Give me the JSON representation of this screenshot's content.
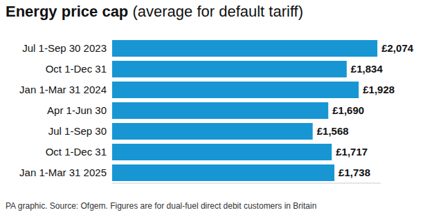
{
  "chart_data": {
    "type": "bar",
    "title": "Energy price cap",
    "subtitle": "(average for default tariff)",
    "orientation": "horizontal",
    "categories": [
      "Jul 1-Sep 30 2023",
      "Oct 1-Dec 31",
      "Jan 1-Mar 31 2024",
      "Apr 1-Jun 30",
      "Jul 1-Sep 30",
      "Oct 1-Dec 31",
      "Jan 1-Mar 31 2025"
    ],
    "values": [
      2074,
      1834,
      1928,
      1690,
      1568,
      1717,
      1738
    ],
    "value_labels": [
      "£2,074",
      "£1,834",
      "£1,928",
      "£1,690",
      "£1,568",
      "£1,717",
      "£1,738"
    ],
    "data_labels": true,
    "color": "#1796d3",
    "xlim": [
      0,
      2100
    ],
    "tick_labels": "y",
    "grid": false,
    "note": "PA graphic. Source: Ofgem. Figures are for dual-fuel direct debit customers in Britain"
  }
}
